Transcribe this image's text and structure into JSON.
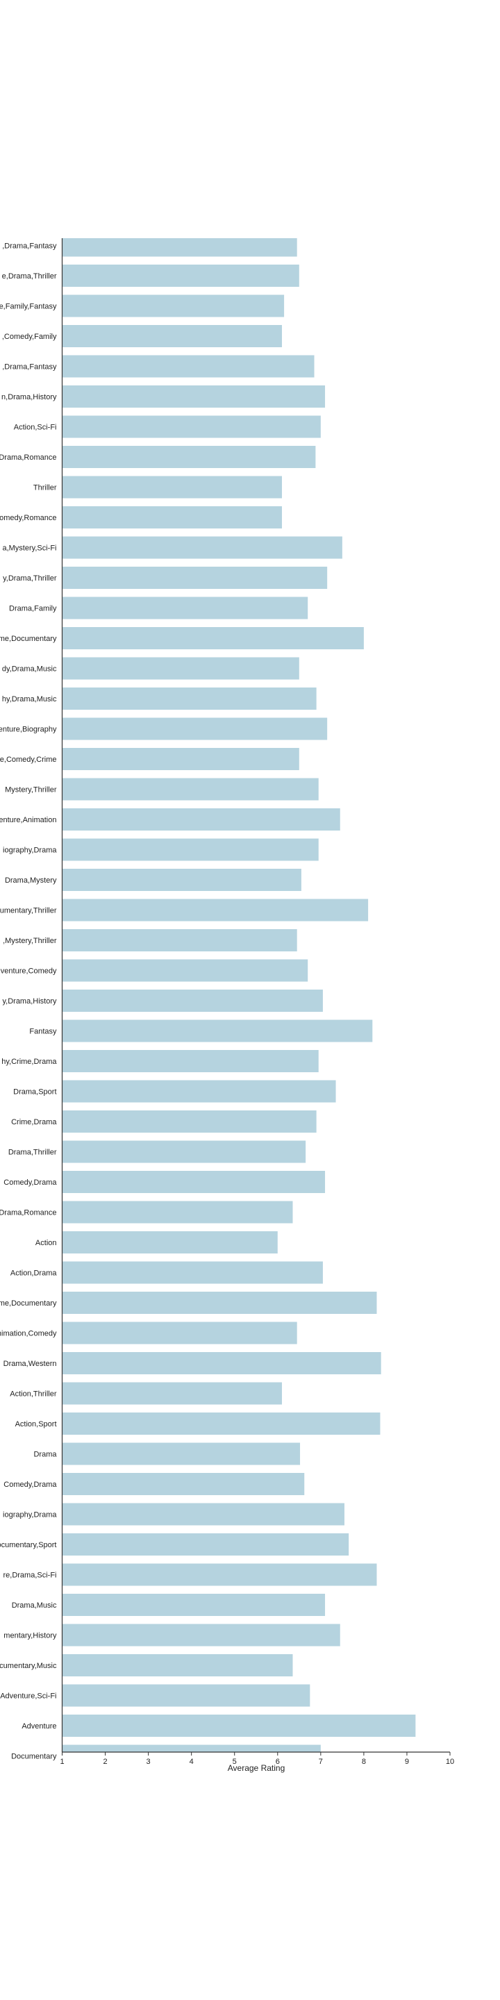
{
  "chart_data": {
    "type": "bar",
    "orientation": "horizontal",
    "title": "",
    "xlabel": "Average Rating",
    "ylabel": "",
    "xlim": [
      1,
      10
    ],
    "xticks": [
      "1",
      "2",
      "3",
      "4",
      "5",
      "6",
      "7",
      "8",
      "9",
      "10"
    ],
    "grid": false,
    "legend": "none",
    "bar_color": "#b5d3df",
    "categories": [
      ",Drama,Fantasy",
      "e,Drama,Thriller",
      "e,Family,Fantasy",
      ",Comedy,Family",
      ",Drama,Fantasy",
      "n,Drama,History",
      "Action,Sci-Fi",
      "Drama,Romance",
      "Thriller",
      "omedy,Romance",
      "a,Mystery,Sci-Fi",
      "y,Drama,Thriller",
      "Drama,Family",
      "me,Documentary",
      "dy,Drama,Music",
      "hy,Drama,Music",
      "enture,Biography",
      "e,Comedy,Crime",
      "Mystery,Thriller",
      "enture,Animation",
      "iography,Drama",
      "Drama,Mystery",
      "umentary,Thriller",
      ",Mystery,Thriller",
      "venture,Comedy",
      "y,Drama,History",
      "Fantasy",
      "hy,Crime,Drama",
      "Drama,Sport",
      "Crime,Drama",
      "Drama,Thriller",
      "Comedy,Drama",
      "Drama,Romance",
      "Action",
      "Action,Drama",
      "me,Documentary",
      "nimation,Comedy",
      "Drama,Western",
      "Action,Thriller",
      "Action,Sport",
      "Drama",
      "Comedy,Drama",
      "iography,Drama",
      "ocumentary,Sport",
      "re,Drama,Sci-Fi",
      "Drama,Music",
      "mentary,History",
      "ocumentary,Music",
      "Adventure,Sci-Fi",
      "Adventure",
      "Documentary"
    ],
    "values": [
      6.45,
      6.5,
      6.15,
      6.1,
      6.85,
      7.1,
      7.0,
      6.88,
      6.1,
      6.1,
      7.5,
      7.15,
      6.7,
      8.0,
      6.5,
      6.9,
      7.15,
      6.5,
      6.95,
      7.45,
      6.95,
      6.55,
      8.1,
      6.45,
      6.7,
      7.05,
      8.2,
      6.95,
      7.35,
      6.9,
      6.65,
      7.1,
      6.35,
      6.0,
      7.05,
      8.3,
      6.45,
      8.4,
      6.1,
      8.38,
      6.52,
      6.62,
      7.55,
      7.65,
      8.3,
      7.1,
      7.45,
      6.35,
      6.75,
      9.2,
      7.0
    ]
  }
}
